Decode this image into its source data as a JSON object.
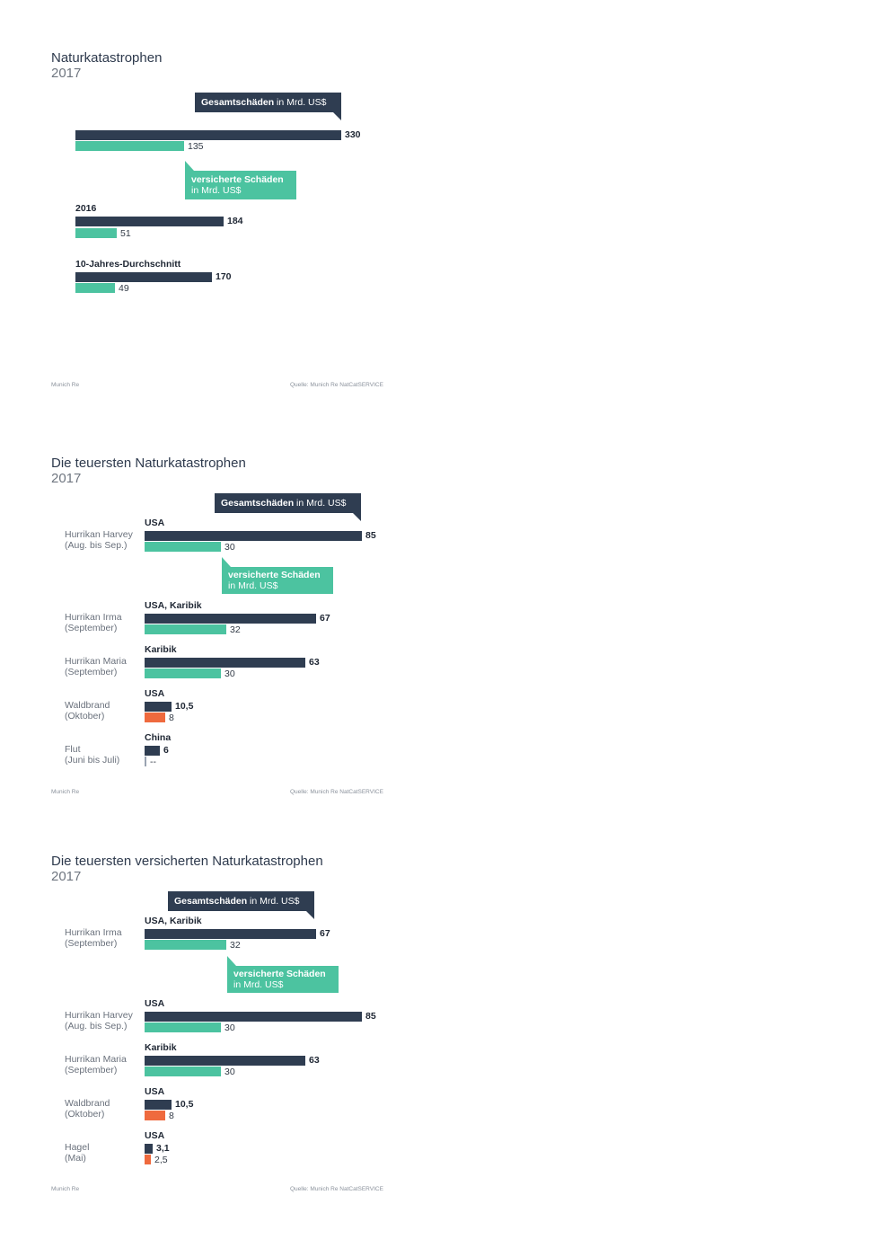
{
  "colors": {
    "total": "#2f3d51",
    "insured": "#4cc3a0",
    "insured_other": "#ef6a3e"
  },
  "chart_data": [
    {
      "type": "bar",
      "title": "Naturkatastrophen",
      "subtitle": "2017",
      "callouts": {
        "total": {
          "bold": "Gesamtschäden",
          "rest": " in Mrd. US$"
        },
        "insured": {
          "line1": "versicherte Schäden",
          "line2": "in Mrd. US$"
        }
      },
      "categories": [
        "",
        "2016",
        "10-Jahres-Durchschnitt"
      ],
      "series": [
        {
          "name": "Gesamtschäden in Mrd. US$",
          "values": [
            330,
            184,
            170
          ],
          "labels": [
            "330",
            "184",
            "170"
          ]
        },
        {
          "name": "versicherte Schäden in Mrd. US$",
          "values": [
            135,
            51,
            49
          ],
          "labels": [
            "135",
            "51",
            "49"
          ]
        }
      ],
      "footer": {
        "left": "Munich Re",
        "right": "Quelle: Munich Re NatCatSERVICE"
      }
    },
    {
      "type": "bar",
      "title": "Die teuersten Naturkatastrophen",
      "subtitle": "2017",
      "callouts": {
        "total": {
          "bold": "Gesamtschäden",
          "rest": " in Mrd. US$"
        },
        "insured": {
          "line1": "versicherte Schäden",
          "line2": "in Mrd. US$"
        }
      },
      "rows": [
        {
          "label1": "Hurrikan Harvey",
          "label2": "(Aug. bis Sep.)",
          "region": "USA",
          "total": 85,
          "total_label": "85",
          "insured": 30,
          "insured_label": "30",
          "insured_color": "teal"
        },
        {
          "label1": "Hurrikan Irma",
          "label2": "(September)",
          "region": "USA, Karibik",
          "total": 67,
          "total_label": "67",
          "insured": 32,
          "insured_label": "32",
          "insured_color": "teal"
        },
        {
          "label1": "Hurrikan Maria",
          "label2": "(September)",
          "region": "Karibik",
          "total": 63,
          "total_label": "63",
          "insured": 30,
          "insured_label": "30",
          "insured_color": "teal"
        },
        {
          "label1": "Waldbrand",
          "label2": "(Oktober)",
          "region": "USA",
          "total": 10.5,
          "total_label": "10,5",
          "insured": 8,
          "insured_label": "8",
          "insured_color": "orange"
        },
        {
          "label1": "Flut",
          "label2": "(Juni bis Juli)",
          "region": "China",
          "total": 6,
          "total_label": "6",
          "insured": 0,
          "insured_label": "--",
          "insured_color": "gray"
        }
      ],
      "footer": {
        "left": "Munich Re",
        "right": "Quelle: Munich Re NatCatSERVICE"
      }
    },
    {
      "type": "bar",
      "title": "Die teuersten versicherten Naturkatastrophen",
      "subtitle": "2017",
      "callouts": {
        "total": {
          "bold": "Gesamtschäden",
          "rest": " in Mrd. US$"
        },
        "insured": {
          "line1": "versicherte Schäden",
          "line2": "in Mrd. US$"
        }
      },
      "rows": [
        {
          "label1": "Hurrikan Irma",
          "label2": "(September)",
          "region": "USA, Karibik",
          "total": 67,
          "total_label": "67",
          "insured": 32,
          "insured_label": "32",
          "insured_color": "teal"
        },
        {
          "label1": "Hurrikan Harvey",
          "label2": "(Aug. bis Sep.)",
          "region": "USA",
          "total": 85,
          "total_label": "85",
          "insured": 30,
          "insured_label": "30",
          "insured_color": "teal"
        },
        {
          "label1": "Hurrikan Maria",
          "label2": "(September)",
          "region": "Karibik",
          "total": 63,
          "total_label": "63",
          "insured": 30,
          "insured_label": "30",
          "insured_color": "teal"
        },
        {
          "label1": "Waldbrand",
          "label2": "(Oktober)",
          "region": "USA",
          "total": 10.5,
          "total_label": "10,5",
          "insured": 8,
          "insured_label": "8",
          "insured_color": "orange"
        },
        {
          "label1": "Hagel",
          "label2": "(Mai)",
          "region": "USA",
          "total": 3.1,
          "total_label": "3,1",
          "insured": 2.5,
          "insured_label": "2,5",
          "insured_color": "orange"
        }
      ],
      "footer": {
        "left": "Munich Re",
        "right": "Quelle: Munich Re NatCatSERVICE"
      }
    }
  ]
}
